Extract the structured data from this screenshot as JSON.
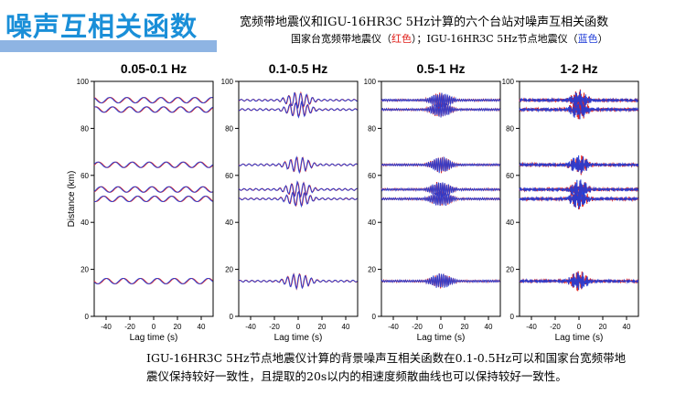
{
  "slide": {
    "title": "噪声互相关函数",
    "header_line1": "宽频带地震仪和IGU-16HR3C 5Hz计算的六个台站对噪声互相关函数",
    "header_line2_prefix": "国家台宽频带地震仪（",
    "header_line2_red": "红色",
    "header_line2_mid": "）；IGU-16HR3C 5Hz节点地震仪（",
    "header_line2_blue": "蓝色",
    "header_line2_suffix": "）",
    "caption_line1": "IGU-16HR3C 5Hz节点地震仪计算的背景噪声互相关函数在0.1-0.5Hz可以和国家台宽频带地",
    "caption_line2": "震仪保持较好一致性，且提取的20s以内的相速度频散曲线也可以保持较好一致性。",
    "colors": {
      "title": "#1a8fd8",
      "title_bar": "#8eb4e3",
      "broadband": "#e0201b",
      "node": "#1f3cd8"
    }
  },
  "chart_data": [
    {
      "type": "line",
      "title": "0.05-0.1 Hz",
      "xlabel": "Lag time (s)",
      "ylabel": "Distance (km)",
      "xlim": [
        -50,
        50
      ],
      "ylim": [
        0,
        100
      ],
      "xticks": [
        -40,
        -20,
        0,
        20,
        40
      ],
      "yticks": [
        0,
        20,
        40,
        60,
        80,
        100
      ],
      "station_pair_distances_km": [
        15,
        50,
        54,
        64.5,
        88,
        92
      ],
      "series": [
        {
          "name": "国家台宽频带地震仪",
          "color": "#e0201b"
        },
        {
          "name": "IGU-16HR3C 5Hz节点地震仪",
          "color": "#1f3cd8"
        }
      ]
    },
    {
      "type": "line",
      "title": "0.1-0.5 Hz",
      "xlabel": "Lag time (s)",
      "ylabel": "",
      "xlim": [
        -50,
        50
      ],
      "ylim": [
        0,
        100
      ],
      "xticks": [
        -40,
        -20,
        0,
        20,
        40
      ],
      "yticks": [
        0,
        20,
        40,
        60,
        80,
        100
      ],
      "station_pair_distances_km": [
        15,
        50,
        54,
        64.5,
        88,
        92
      ],
      "series": [
        {
          "name": "国家台宽频带地震仪",
          "color": "#e0201b"
        },
        {
          "name": "IGU-16HR3C 5Hz节点地震仪",
          "color": "#1f3cd8"
        }
      ]
    },
    {
      "type": "line",
      "title": "0.5-1 Hz",
      "xlabel": "Lag time (s)",
      "ylabel": "",
      "xlim": [
        -50,
        50
      ],
      "ylim": [
        0,
        100
      ],
      "xticks": [
        -40,
        -20,
        0,
        20,
        40
      ],
      "yticks": [
        0,
        20,
        40,
        60,
        80,
        100
      ],
      "station_pair_distances_km": [
        15,
        50,
        54,
        64.5,
        88,
        92
      ],
      "series": [
        {
          "name": "国家台宽频带地震仪",
          "color": "#e0201b"
        },
        {
          "name": "IGU-16HR3C 5Hz节点地震仪",
          "color": "#1f3cd8"
        }
      ]
    },
    {
      "type": "line",
      "title": "1-2 Hz",
      "xlabel": "Lag time (s)",
      "ylabel": "",
      "xlim": [
        -50,
        50
      ],
      "ylim": [
        0,
        100
      ],
      "xticks": [
        -40,
        -20,
        0,
        20,
        40
      ],
      "yticks": [
        0,
        20,
        40,
        60,
        80,
        100
      ],
      "station_pair_distances_km": [
        15,
        50,
        54,
        64.5,
        88,
        92
      ],
      "series": [
        {
          "name": "国家台宽频带地震仪",
          "color": "#e0201b"
        },
        {
          "name": "IGU-16HR3C 5Hz节点地震仪",
          "color": "#1f3cd8"
        }
      ]
    }
  ]
}
